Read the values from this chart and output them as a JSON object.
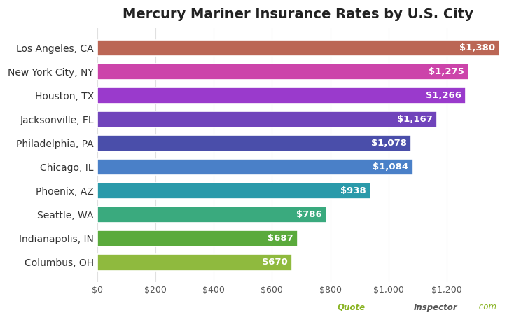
{
  "title": "Mercury Mariner Insurance Rates by U.S. City",
  "cities": [
    "Columbus, OH",
    "Indianapolis, IN",
    "Seattle, WA",
    "Phoenix, AZ",
    "Chicago, IL",
    "Philadelphia, PA",
    "Jacksonville, FL",
    "Houston, TX",
    "New York City, NY",
    "Los Angeles, CA"
  ],
  "values": [
    670,
    687,
    786,
    938,
    1084,
    1078,
    1167,
    1266,
    1275,
    1380
  ],
  "bar_colors": [
    "#8fba3e",
    "#5aaa3c",
    "#3aaa7e",
    "#2a9aaa",
    "#4a80c8",
    "#4a4eaa",
    "#7044bb",
    "#9a3acc",
    "#cc44aa",
    "#bb6655"
  ],
  "xlim": [
    0,
    1380
  ],
  "xtick_values": [
    0,
    200,
    400,
    600,
    800,
    1000,
    1200
  ],
  "background_color": "#ffffff",
  "grid_color": "#e0e0e0",
  "label_color": "#ffffff",
  "title_fontsize": 14,
  "bar_label_fontsize": 9.5,
  "tick_fontsize": 9,
  "ytick_fontsize": 10,
  "watermark_bold": "Inspector",
  "watermark_regular_pre": "Quote",
  "watermark_regular_post": ".com",
  "watermark_color_green": "#8ab425",
  "watermark_color_gray": "#555555"
}
